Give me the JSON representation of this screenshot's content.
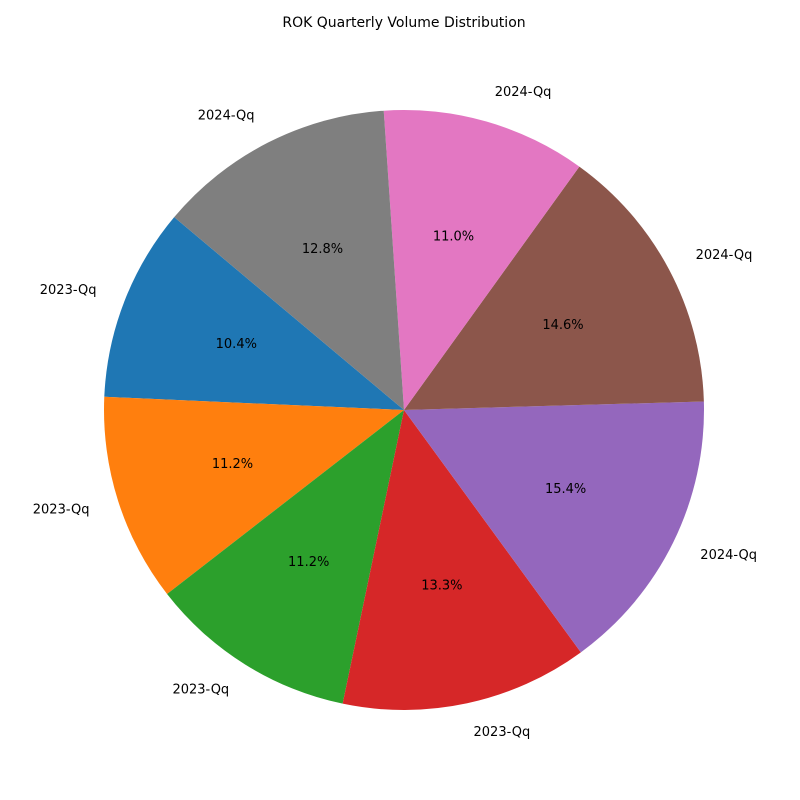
{
  "chart_data": {
    "type": "pie",
    "title": "ROK Quarterly Volume Distribution",
    "categories": [
      "2023-Qq",
      "2023-Qq",
      "2023-Qq",
      "2023-Qq",
      "2024-Qq",
      "2024-Qq",
      "2024-Qq",
      "2024-Qq"
    ],
    "values": [
      10.4,
      11.2,
      11.2,
      13.3,
      15.4,
      14.6,
      11.0,
      12.8
    ],
    "value_labels": [
      "10.4%",
      "11.2%",
      "11.2%",
      "13.3%",
      "15.4%",
      "14.6%",
      "11.0%",
      "12.8%"
    ],
    "colors": [
      "#1f77b4",
      "#ff7f0e",
      "#2ca02c",
      "#d62728",
      "#9467bd",
      "#8c564b",
      "#e377c2",
      "#7f7f7f"
    ],
    "start_angle_deg": 140,
    "direction": "counterclockwise",
    "legend": "none"
  }
}
